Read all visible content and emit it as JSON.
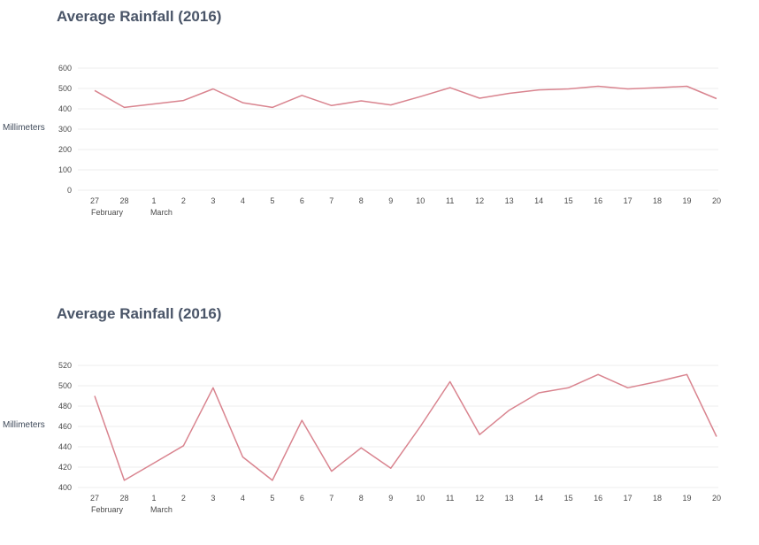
{
  "chart_data": [
    {
      "type": "line",
      "title": "Average Rainfall (2016)",
      "xlabel": "",
      "ylabel": "Millimeters",
      "categories": [
        "27",
        "28",
        "1",
        "2",
        "3",
        "4",
        "5",
        "6",
        "7",
        "8",
        "9",
        "10",
        "11",
        "12",
        "13",
        "14",
        "15",
        "16",
        "17",
        "18",
        "19",
        "20"
      ],
      "month_labels": [
        {
          "at": "27",
          "label": "February"
        },
        {
          "at": "1",
          "label": "March"
        }
      ],
      "yticks": [
        0,
        100,
        200,
        300,
        400,
        500,
        600
      ],
      "ylim": [
        0,
        600
      ],
      "series": [
        {
          "name": "Average Rainfall",
          "color": "#d9848f",
          "values": [
            490,
            407,
            424,
            441,
            498,
            430,
            407,
            466,
            416,
            439,
            419,
            460,
            504,
            452,
            476,
            493,
            498,
            511,
            498,
            504,
            511,
            450
          ]
        }
      ]
    },
    {
      "type": "line",
      "title": "Average Rainfall (2016)",
      "xlabel": "",
      "ylabel": "Millimeters",
      "categories": [
        "27",
        "28",
        "1",
        "2",
        "3",
        "4",
        "5",
        "6",
        "7",
        "8",
        "9",
        "10",
        "11",
        "12",
        "13",
        "14",
        "15",
        "16",
        "17",
        "18",
        "19",
        "20"
      ],
      "month_labels": [
        {
          "at": "27",
          "label": "February"
        },
        {
          "at": "1",
          "label": "March"
        }
      ],
      "yticks": [
        400,
        420,
        440,
        460,
        480,
        500,
        520
      ],
      "ylim": [
        400,
        520
      ],
      "series": [
        {
          "name": "Average Rainfall",
          "color": "#d9848f",
          "values": [
            490,
            407,
            424,
            441,
            498,
            430,
            407,
            466,
            416,
            439,
            419,
            460,
            504,
            452,
            476,
            493,
            498,
            511,
            498,
            504,
            511,
            450
          ]
        }
      ]
    }
  ]
}
